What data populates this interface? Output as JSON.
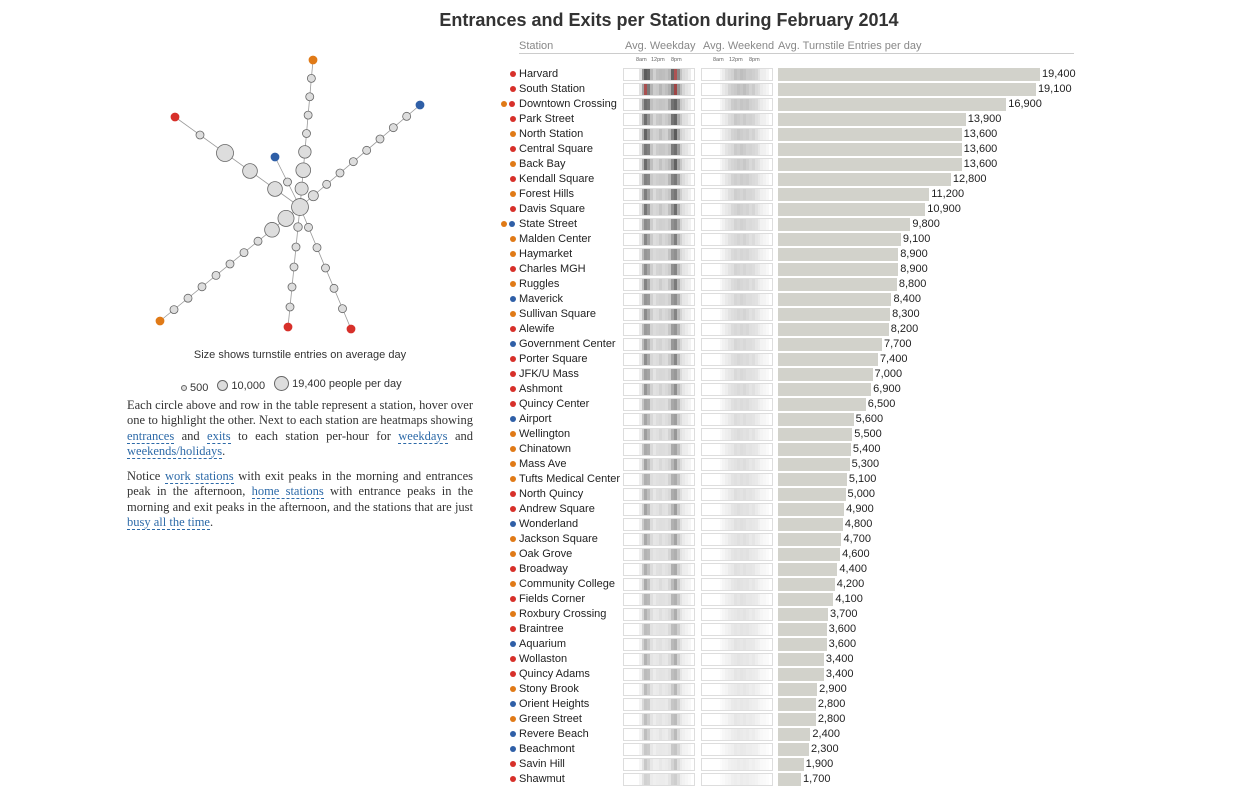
{
  "title": "Entrances and Exits per Station during February 2014",
  "colors": {
    "red": "#d7302a",
    "orange": "#e07a17",
    "blue": "#2f5fa7",
    "bar": "#d2d2cb"
  },
  "map": {
    "size_note": "Size shows turnstile entries on average day",
    "legend": [
      {
        "value": 500,
        "label": "500"
      },
      {
        "value": 10000,
        "label": "10,000"
      },
      {
        "value": 19400,
        "label": "19,400 people per day"
      }
    ]
  },
  "text": {
    "p1_a": "Each circle above and row in the table represent a station, hover over one to highlight the other. Next to each station are heatmaps showing ",
    "link_entrances": "entrances",
    "p1_and1": " and ",
    "link_exits": "exits",
    "p1_b": " to each station per-hour for ",
    "link_weekdays": "weekdays",
    "p1_and2": " and ",
    "link_weekends": "weekends/holidays",
    "p1_end": ".",
    "p2_a": "Notice ",
    "link_work": "work stations",
    "p2_b": " with exit peaks in the morning and entrances peak in the afternoon, ",
    "link_home": "home stations",
    "p2_c": " with entrance peaks in the morning and exit peaks in the afternoon, and the stations that are just ",
    "link_busy": "busy all the time",
    "p2_end": "."
  },
  "table": {
    "headers": {
      "station": "Station",
      "weekday": "Avg. Weekday",
      "weekend": "Avg. Weekend",
      "entries": "Avg. Turnstile Entries per day"
    },
    "hour_ticks": [
      "8am",
      "12pm",
      "8pm"
    ]
  },
  "chart_data": {
    "type": "bar",
    "title": "Entrances and Exits per Station during February 2014",
    "ylabel": "Avg. Turnstile Entries per day",
    "xlim": [
      0,
      19400
    ],
    "categories": [
      "Harvard",
      "South Station",
      "Downtown Crossing",
      "Park Street",
      "North Station",
      "Central Square",
      "Back Bay",
      "Kendall Square",
      "Forest Hills",
      "Davis Square",
      "State Street",
      "Malden Center",
      "Haymarket",
      "Charles MGH",
      "Ruggles",
      "Maverick",
      "Sullivan Square",
      "Alewife",
      "Government Center",
      "Porter Square",
      "JFK/U Mass",
      "Ashmont",
      "Quincy Center",
      "Airport",
      "Wellington",
      "Chinatown",
      "Mass Ave",
      "Tufts Medical Center",
      "North Quincy",
      "Andrew Square",
      "Wonderland",
      "Jackson Square",
      "Oak Grove",
      "Broadway",
      "Community College",
      "Fields Corner",
      "Roxbury Crossing",
      "Braintree",
      "Aquarium",
      "Wollaston",
      "Quincy Adams",
      "Stony Brook",
      "Orient Heights",
      "Green Street",
      "Revere Beach",
      "Beachmont",
      "Savin Hill",
      "Shawmut"
    ],
    "values": [
      19400,
      19100,
      16900,
      13900,
      13600,
      13600,
      13600,
      12800,
      11200,
      10900,
      9800,
      9100,
      8900,
      8900,
      8800,
      8400,
      8300,
      8200,
      7700,
      7400,
      7000,
      6900,
      6500,
      5600,
      5500,
      5400,
      5300,
      5100,
      5000,
      4900,
      4800,
      4700,
      4600,
      4400,
      4200,
      4100,
      3700,
      3600,
      3600,
      3400,
      3400,
      2900,
      2800,
      2800,
      2400,
      2300,
      1900,
      1700
    ],
    "value_labels": [
      "19,400",
      "19,100",
      "16,900",
      "13,900",
      "13,600",
      "13,600",
      "13,600",
      "12,800",
      "11,200",
      "10,900",
      "9,800",
      "9,100",
      "8,900",
      "8,900",
      "8,800",
      "8,400",
      "8,300",
      "8,200",
      "7,700",
      "7,400",
      "7,000",
      "6,900",
      "6,500",
      "5,600",
      "5,500",
      "5,400",
      "5,300",
      "5,100",
      "5,000",
      "4,900",
      "4,800",
      "4,700",
      "4,600",
      "4,400",
      "4,200",
      "4,100",
      "3,700",
      "3,600",
      "3,600",
      "3,400",
      "3,400",
      "2,900",
      "2,800",
      "2,800",
      "2,400",
      "2,300",
      "1,900",
      "1,700"
    ],
    "line_colors": [
      [
        "red"
      ],
      [
        "red"
      ],
      [
        "orange",
        "red"
      ],
      [
        "red"
      ],
      [
        "orange"
      ],
      [
        "red"
      ],
      [
        "orange"
      ],
      [
        "red"
      ],
      [
        "orange"
      ],
      [
        "red"
      ],
      [
        "orange",
        "blue"
      ],
      [
        "orange"
      ],
      [
        "orange"
      ],
      [
        "red"
      ],
      [
        "orange"
      ],
      [
        "blue"
      ],
      [
        "orange"
      ],
      [
        "red"
      ],
      [
        "blue"
      ],
      [
        "red"
      ],
      [
        "red"
      ],
      [
        "red"
      ],
      [
        "red"
      ],
      [
        "blue"
      ],
      [
        "orange"
      ],
      [
        "orange"
      ],
      [
        "orange"
      ],
      [
        "orange"
      ],
      [
        "red"
      ],
      [
        "red"
      ],
      [
        "blue"
      ],
      [
        "orange"
      ],
      [
        "orange"
      ],
      [
        "red"
      ],
      [
        "orange"
      ],
      [
        "red"
      ],
      [
        "orange"
      ],
      [
        "red"
      ],
      [
        "blue"
      ],
      [
        "red"
      ],
      [
        "red"
      ],
      [
        "orange"
      ],
      [
        "blue"
      ],
      [
        "orange"
      ],
      [
        "blue"
      ],
      [
        "blue"
      ],
      [
        "red"
      ],
      [
        "red"
      ]
    ]
  }
}
